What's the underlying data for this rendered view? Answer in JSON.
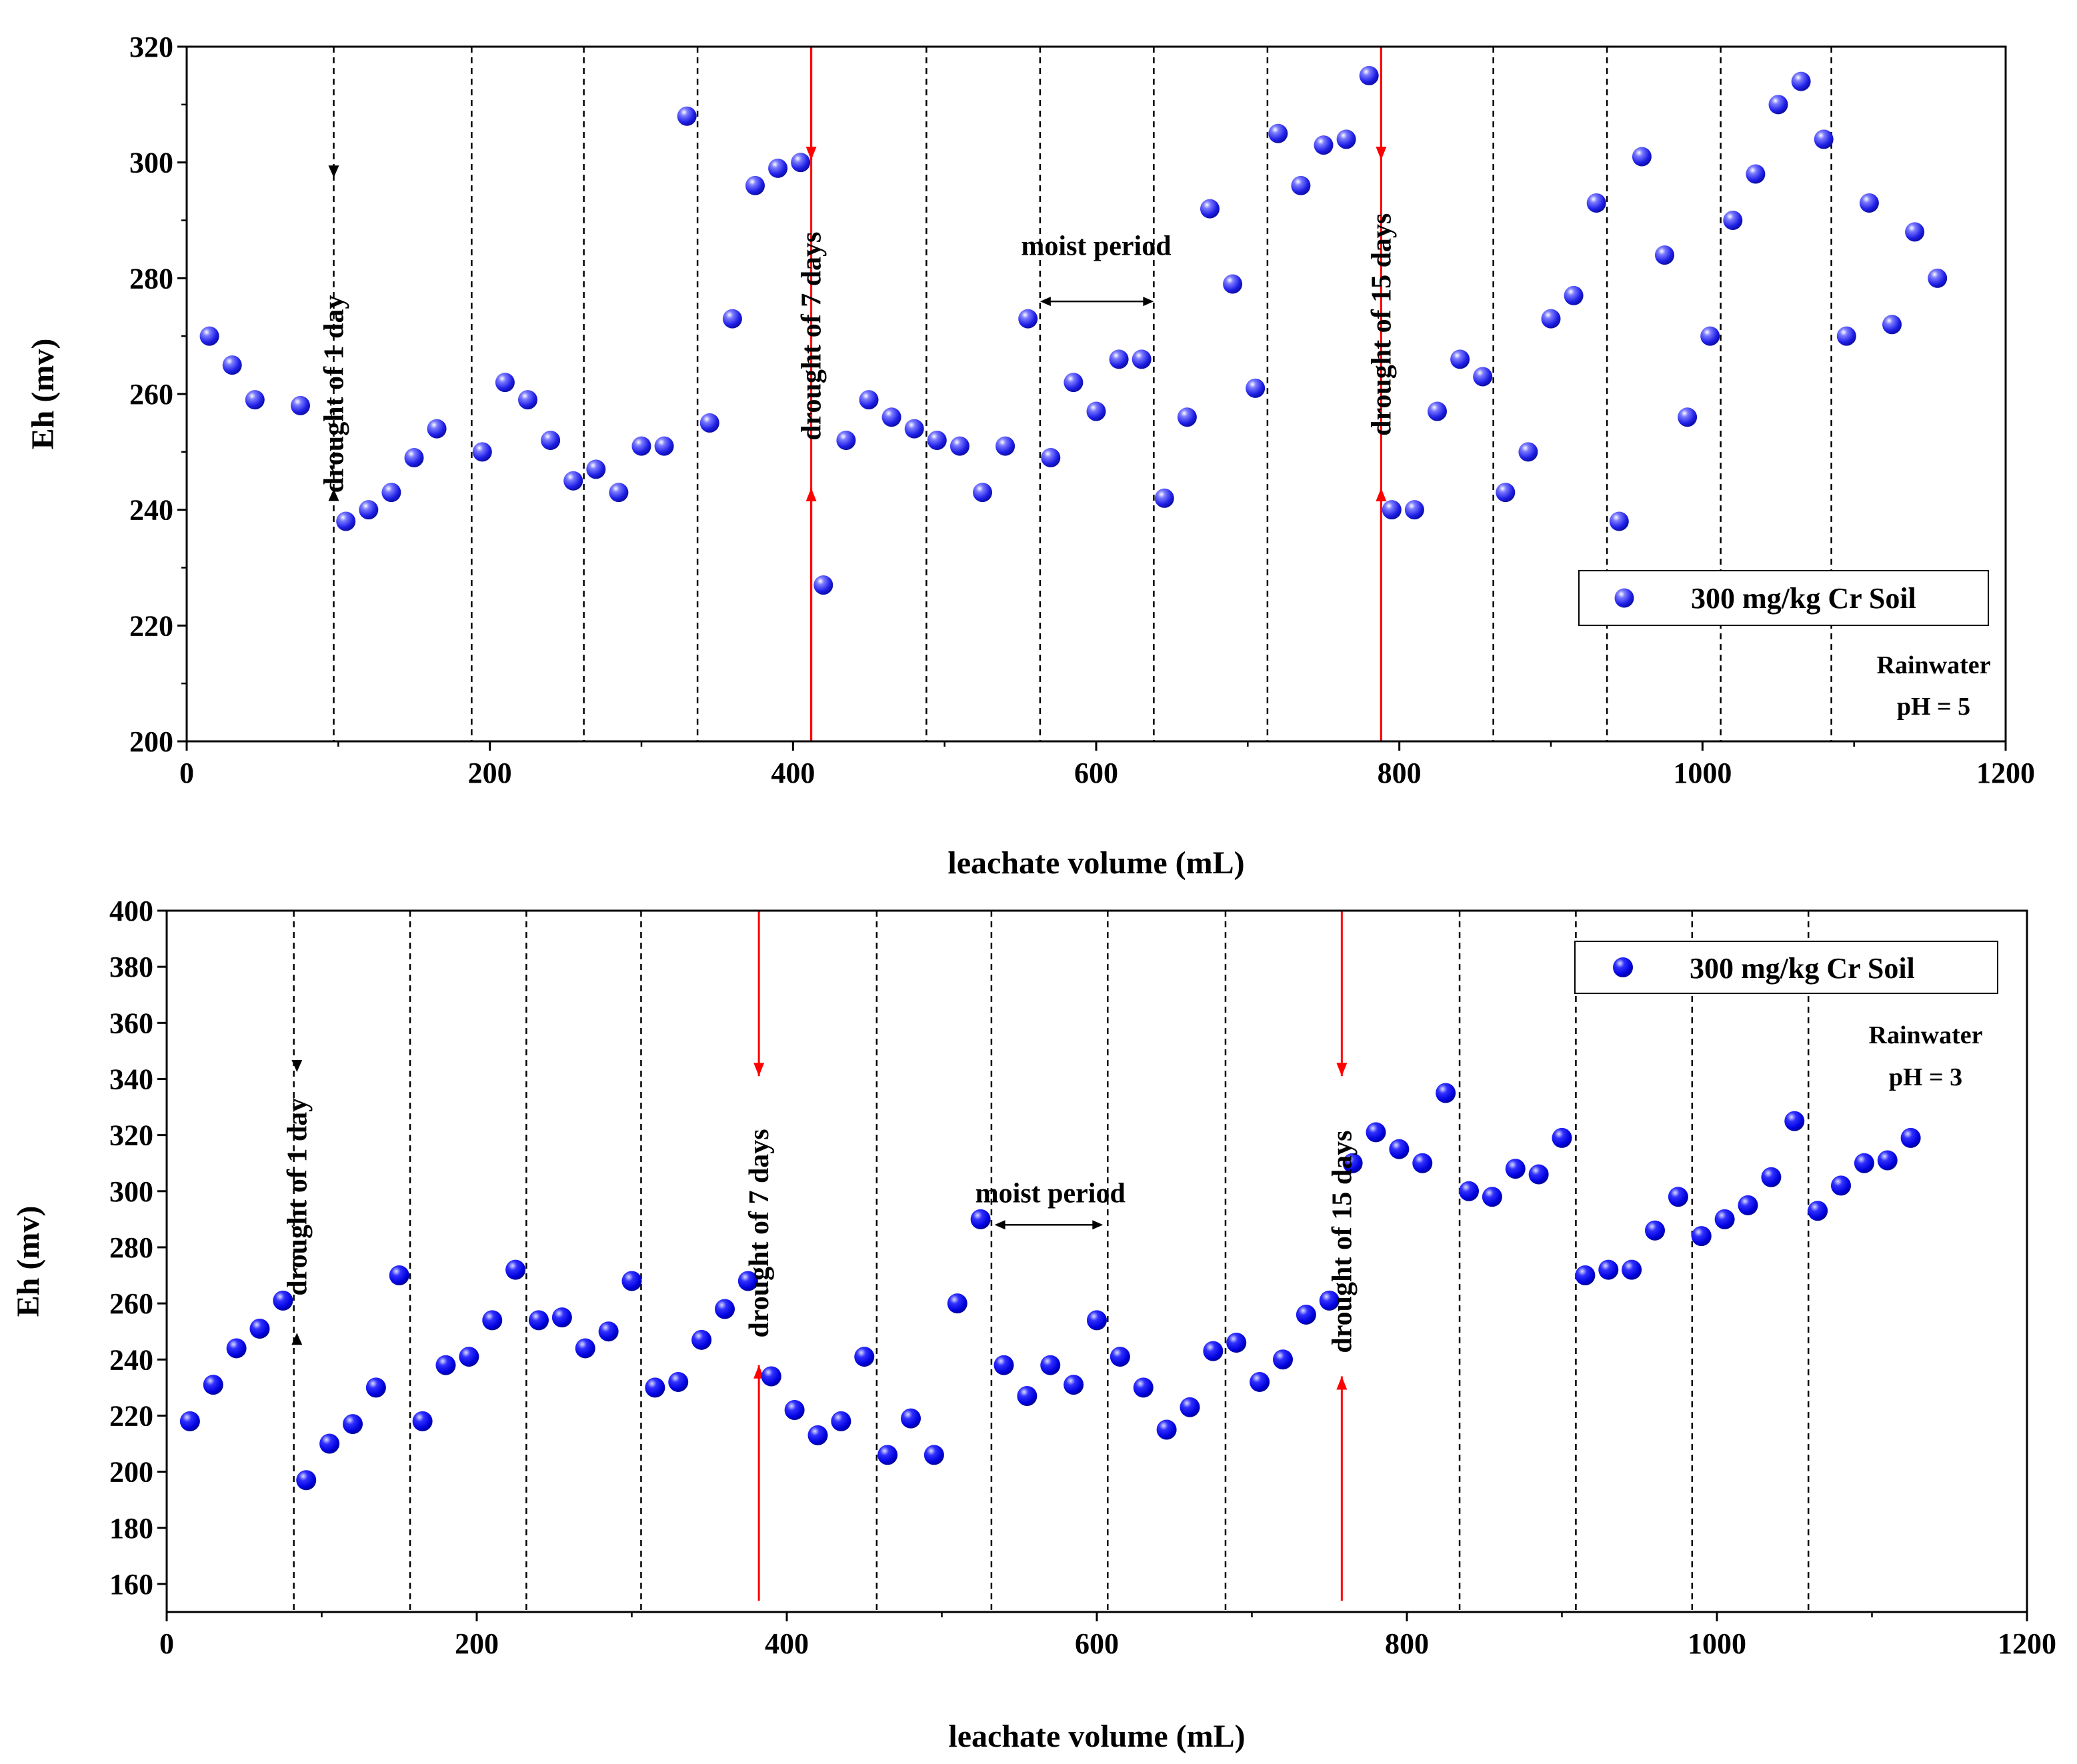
{
  "chart_data": [
    {
      "type": "scatter",
      "title": "",
      "xlabel": "leachate volume (mL)",
      "ylabel": "Eh (mv)",
      "xlim": [
        0,
        1200
      ],
      "ylim": [
        200,
        320
      ],
      "xticks": [
        0,
        200,
        400,
        600,
        800,
        1000,
        1200
      ],
      "yticks": [
        200,
        220,
        240,
        260,
        280,
        300,
        320
      ],
      "series": [
        {
          "name": "300 mg/kg Cr Soil",
          "color": "#2020ff",
          "x": [
            15,
            30,
            45,
            75,
            105,
            120,
            135,
            150,
            165,
            195,
            210,
            225,
            240,
            255,
            270,
            285,
            300,
            315,
            330,
            345,
            360,
            375,
            390,
            405,
            420,
            435,
            450,
            465,
            480,
            495,
            510,
            525,
            540,
            555,
            570,
            585,
            600,
            615,
            630,
            645,
            660,
            675,
            690,
            705,
            720,
            735,
            750,
            765,
            780,
            795,
            810,
            825,
            840,
            855,
            870,
            885,
            900,
            915,
            930,
            945,
            960,
            975,
            990,
            1005,
            1020,
            1035,
            1050,
            1065,
            1080,
            1095,
            1110,
            1125,
            1140,
            1155
          ],
          "y": [
            270,
            265,
            259,
            258,
            238,
            240,
            243,
            249,
            254,
            250,
            262,
            259,
            252,
            245,
            247,
            243,
            251,
            251,
            308,
            255,
            273,
            296,
            299,
            300,
            227,
            252,
            259,
            256,
            254,
            252,
            251,
            243,
            251,
            273,
            249,
            262,
            257,
            266,
            266,
            242,
            256,
            292,
            279,
            261,
            305,
            296,
            303,
            304,
            315,
            240,
            240,
            257,
            266,
            263,
            243,
            250,
            273,
            277,
            293,
            238,
            301,
            284,
            256,
            270,
            290,
            298,
            310,
            314,
            304,
            270,
            293,
            272,
            288,
            280
          ]
        }
      ],
      "vlines": [
        {
          "x": 97,
          "style": "dashed",
          "color": "#000000"
        },
        {
          "x": 188,
          "style": "dashed",
          "color": "#000000"
        },
        {
          "x": 262,
          "style": "dashed",
          "color": "#000000"
        },
        {
          "x": 337,
          "style": "dashed",
          "color": "#000000"
        },
        {
          "x": 412,
          "style": "solid",
          "color": "#ff0000"
        },
        {
          "x": 488,
          "style": "dashed",
          "color": "#000000"
        },
        {
          "x": 563,
          "style": "dashed",
          "color": "#000000"
        },
        {
          "x": 638,
          "style": "dashed",
          "color": "#000000"
        },
        {
          "x": 713,
          "style": "dashed",
          "color": "#000000"
        },
        {
          "x": 788,
          "style": "solid",
          "color": "#ff0000"
        },
        {
          "x": 862,
          "style": "dashed",
          "color": "#000000"
        },
        {
          "x": 937,
          "style": "dashed",
          "color": "#000000"
        },
        {
          "x": 1012,
          "style": "dashed",
          "color": "#000000"
        },
        {
          "x": 1085,
          "style": "dashed",
          "color": "#000000"
        }
      ],
      "annotations": [
        {
          "text": "drought of 1 day",
          "x": 97,
          "y": 260,
          "orientation": "vertical",
          "arrow_top": 302,
          "arrow_bottom": 239,
          "arrow_color": "#000000"
        },
        {
          "text": "drought of 7 days",
          "x": 412,
          "y": 270,
          "orientation": "vertical",
          "arrow_top": 320,
          "arrow_bottom": 200,
          "arrow_color": "#ff0000"
        },
        {
          "text": "drought of 15 days",
          "x": 788,
          "y": 272,
          "orientation": "vertical",
          "arrow_top": 320,
          "arrow_bottom": 200,
          "arrow_color": "#ff0000"
        },
        {
          "text": "moist period",
          "x": 600,
          "y": 284,
          "orientation": "horizontal",
          "span": [
            563,
            638
          ],
          "span_y": 276
        }
      ],
      "legend": {
        "position": "right",
        "label": "300 mg/kg Cr Soil"
      },
      "note": [
        "Rainwater",
        "pH = 5"
      ]
    },
    {
      "type": "scatter",
      "title": "",
      "xlabel": "leachate volume (mL)",
      "ylabel": "Eh (mv)",
      "xlim": [
        0,
        1200
      ],
      "ylim": [
        150,
        400
      ],
      "xticks": [
        0,
        200,
        400,
        600,
        800,
        1000,
        1200
      ],
      "yticks": [
        160,
        180,
        200,
        220,
        240,
        260,
        280,
        300,
        320,
        340,
        360,
        380,
        400
      ],
      "series": [
        {
          "name": "300 mg/kg Cr Soil",
          "color": "#0000ee",
          "x": [
            15,
            30,
            45,
            60,
            75,
            90,
            105,
            120,
            135,
            150,
            165,
            180,
            195,
            210,
            225,
            240,
            255,
            270,
            285,
            300,
            315,
            330,
            345,
            360,
            375,
            390,
            405,
            420,
            435,
            450,
            465,
            480,
            495,
            510,
            525,
            540,
            555,
            570,
            585,
            600,
            615,
            630,
            645,
            660,
            675,
            690,
            705,
            720,
            735,
            750,
            765,
            780,
            795,
            810,
            825,
            840,
            855,
            870,
            885,
            900,
            915,
            930,
            945,
            960,
            975,
            990,
            1005,
            1020,
            1035,
            1050,
            1065,
            1080,
            1095,
            1110,
            1125
          ],
          "y": [
            218,
            231,
            244,
            251,
            261,
            197,
            210,
            217,
            230,
            270,
            218,
            238,
            241,
            254,
            272,
            254,
            255,
            244,
            250,
            268,
            230,
            232,
            247,
            258,
            268,
            234,
            222,
            213,
            218,
            241,
            206,
            219,
            206,
            260,
            290,
            238,
            227,
            238,
            231,
            254,
            241,
            230,
            215,
            223,
            243,
            246,
            232,
            240,
            256,
            261,
            310,
            321,
            315,
            310,
            335,
            300,
            298,
            308,
            306,
            319,
            270,
            272,
            272,
            286,
            298,
            284,
            290,
            295,
            305,
            325,
            293,
            302,
            310,
            311,
            319
          ]
        }
      ],
      "vlines": [
        {
          "x": 82,
          "style": "dashed",
          "color": "#000000"
        },
        {
          "x": 157,
          "style": "dashed",
          "color": "#000000"
        },
        {
          "x": 232,
          "style": "dashed",
          "color": "#000000"
        },
        {
          "x": 306,
          "style": "dashed",
          "color": "#000000"
        },
        {
          "x": 458,
          "style": "dashed",
          "color": "#000000"
        },
        {
          "x": 532,
          "style": "dashed",
          "color": "#000000"
        },
        {
          "x": 607,
          "style": "dashed",
          "color": "#000000"
        },
        {
          "x": 683,
          "style": "dashed",
          "color": "#000000"
        },
        {
          "x": 834,
          "style": "dashed",
          "color": "#000000"
        },
        {
          "x": 909,
          "style": "dashed",
          "color": "#000000"
        },
        {
          "x": 984,
          "style": "dashed",
          "color": "#000000"
        },
        {
          "x": 1059,
          "style": "dashed",
          "color": "#000000"
        }
      ],
      "annotations": [
        {
          "text": "drought of 1 day",
          "x": 84,
          "y": 298,
          "orientation": "vertical",
          "arrow_top": 352,
          "arrow_bottom": 240,
          "arrow_color": "#000000"
        },
        {
          "text": "drought of 7 days",
          "x": 382,
          "y": 285,
          "orientation": "vertical",
          "arrow_top_range": [
            400,
            341
          ],
          "arrow_bottom_range": [
            154,
            238
          ],
          "arrow_color": "#ff0000"
        },
        {
          "text": "drought of 15 days",
          "x": 758,
          "y": 282,
          "orientation": "vertical",
          "arrow_top_range": [
            400,
            341
          ],
          "arrow_bottom_range": [
            154,
            234
          ],
          "arrow_color": "#ff0000"
        },
        {
          "text": "moist period",
          "x": 570,
          "y": 296,
          "orientation": "horizontal",
          "span": [
            534,
            604
          ],
          "span_y": 288
        }
      ],
      "legend": {
        "position": "top-right",
        "label": "300 mg/kg Cr Soil"
      },
      "note": [
        "Rainwater",
        "pH = 3"
      ]
    }
  ]
}
